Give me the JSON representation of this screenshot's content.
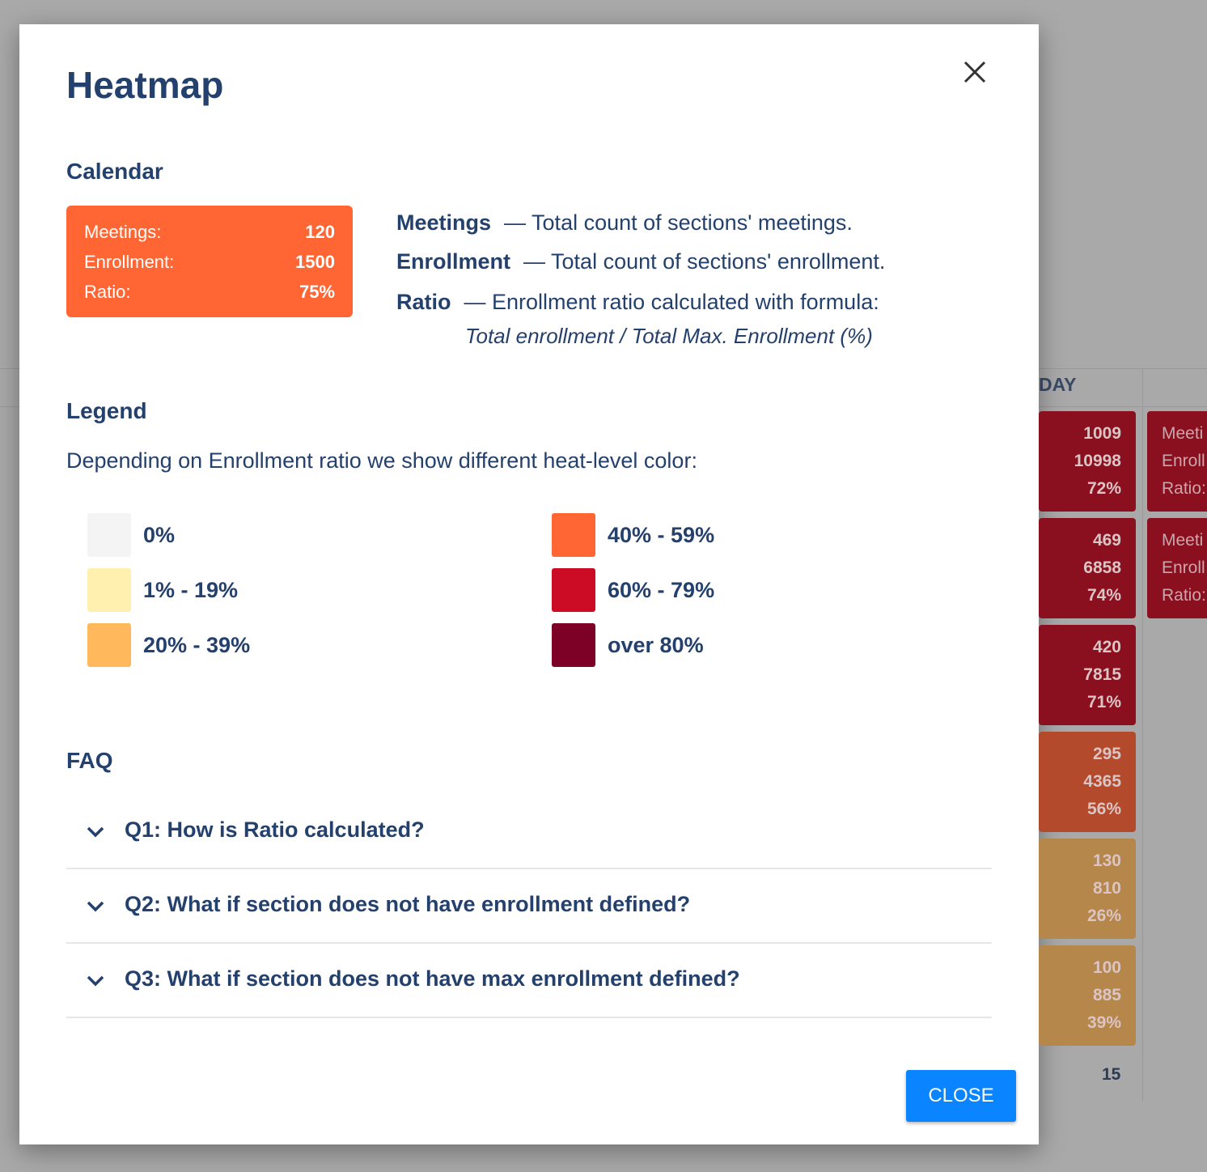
{
  "background": {
    "column_header": "DAY",
    "cells": [
      {
        "lines": [
          "1009",
          "10998",
          "72%"
        ],
        "color": "#8a0f1f"
      },
      {
        "lines": [
          "469",
          "6858",
          "74%"
        ],
        "color": "#8a0f1f"
      },
      {
        "lines": [
          "420",
          "7815",
          "71%"
        ],
        "color": "#8a0f1f"
      },
      {
        "lines": [
          "295",
          "4365",
          "56%"
        ],
        "color": "#b34a2c"
      },
      {
        "lines": [
          "130",
          "810",
          "26%"
        ],
        "color": "#b5874a"
      },
      {
        "lines": [
          "100",
          "885",
          "39%"
        ],
        "color": "#b5874a"
      }
    ],
    "side_cells": [
      {
        "lines": [
          "Meeti",
          "Enroll",
          "Ratio:"
        ],
        "color": "#8a0f1f"
      },
      {
        "lines": [
          "Meeti",
          "Enroll",
          "Ratio:"
        ],
        "color": "#8a0f1f"
      }
    ],
    "last_value": "15"
  },
  "modal": {
    "title": "Heatmap",
    "close_button": "CLOSE",
    "calendar": {
      "heading": "Calendar",
      "example_color": "#ff6633",
      "example": [
        {
          "label": "Meetings:",
          "value": "120"
        },
        {
          "label": "Enrollment:",
          "value": "1500"
        },
        {
          "label": "Ratio:",
          "value": "75%"
        }
      ],
      "definitions": [
        {
          "term": "Meetings",
          "description": "— Total count of sections' meetings."
        },
        {
          "term": "Enrollment",
          "description": "— Total count of sections' enrollment."
        },
        {
          "term": "Ratio",
          "description": "— Enrollment ratio calculated with formula:"
        }
      ],
      "formula": "Total enrollment / Total Max. Enrollment (%)"
    },
    "legend": {
      "heading": "Legend",
      "description": "Depending on Enrollment ratio we show different heat-level color:",
      "items": [
        {
          "label": "0%",
          "color": "#f4f4f4"
        },
        {
          "label": "1% - 19%",
          "color": "#fff0b0"
        },
        {
          "label": "20% - 39%",
          "color": "#ffb95c"
        },
        {
          "label": "40% - 59%",
          "color": "#ff6633"
        },
        {
          "label": "60% - 79%",
          "color": "#cc0c24"
        },
        {
          "label": "over 80%",
          "color": "#7d0026"
        }
      ]
    },
    "faq": {
      "heading": "FAQ",
      "items": [
        "Q1: How is Ratio calculated?",
        "Q2: What if section does not have enrollment defined?",
        "Q3: What if section does not have max enrollment defined?"
      ]
    }
  }
}
